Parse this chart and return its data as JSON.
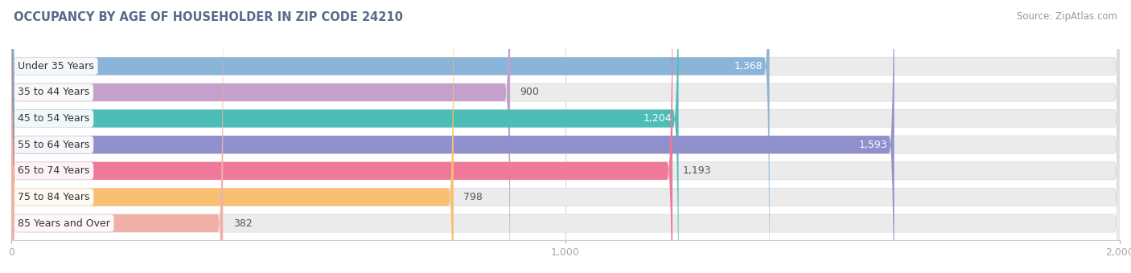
{
  "title": "OCCUPANCY BY AGE OF HOUSEHOLDER IN ZIP CODE 24210",
  "source": "Source: ZipAtlas.com",
  "categories": [
    "Under 35 Years",
    "35 to 44 Years",
    "45 to 54 Years",
    "55 to 64 Years",
    "65 to 74 Years",
    "75 to 84 Years",
    "85 Years and Over"
  ],
  "values": [
    1368,
    900,
    1204,
    1593,
    1193,
    798,
    382
  ],
  "bar_colors": [
    "#8ab4d8",
    "#c4a0cc",
    "#4dbdb8",
    "#9090cc",
    "#f07898",
    "#f8c070",
    "#f0b0a8"
  ],
  "xlim": [
    0,
    2000
  ],
  "xticks": [
    0,
    1000,
    2000
  ],
  "xticklabels": [
    "0",
    "1,000",
    "2,000"
  ],
  "background_color": "#ffffff",
  "bar_bg_color": "#ebebeb",
  "title_color": "#5a6a8a",
  "source_color": "#999999",
  "value_label_inside_color": "white",
  "value_label_outside_color": "#555555",
  "inside_threshold": 1200
}
